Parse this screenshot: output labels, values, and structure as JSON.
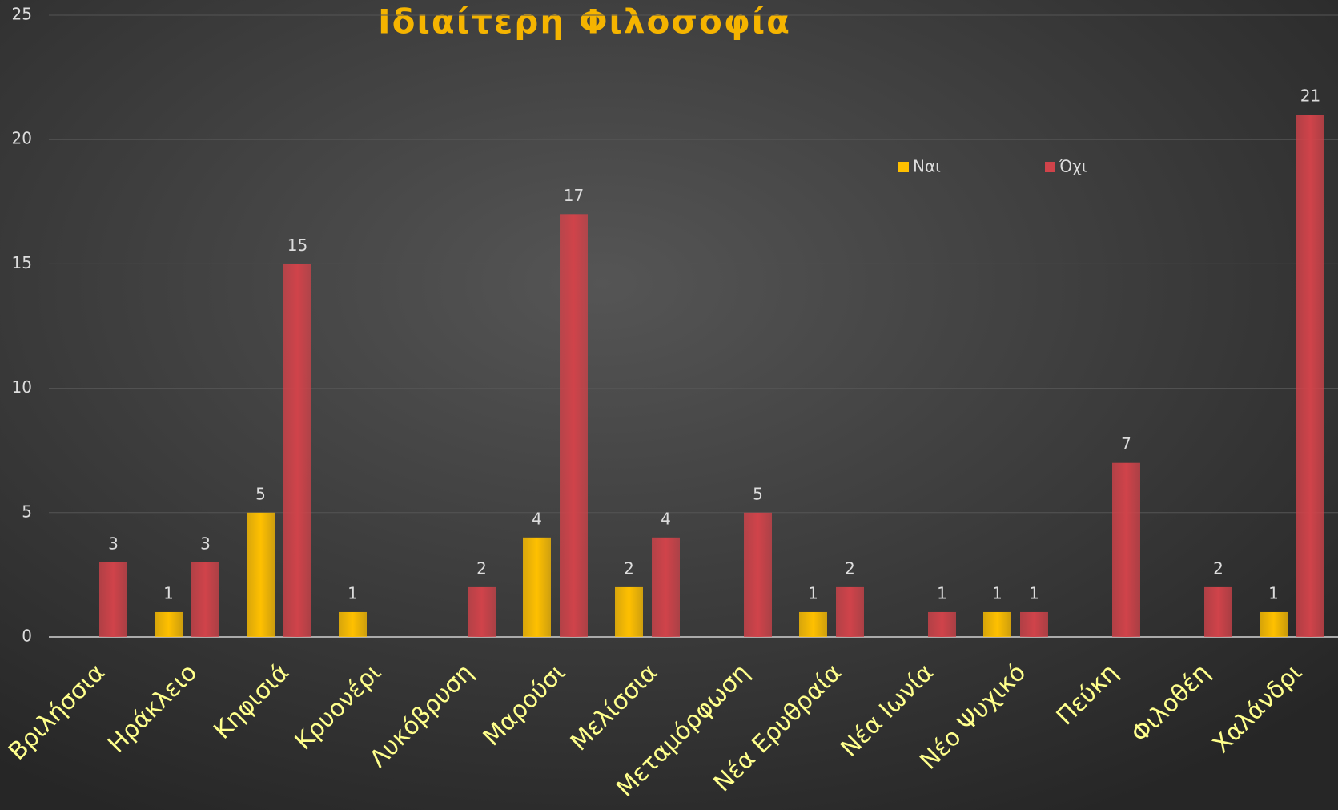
{
  "chart_data": {
    "type": "bar",
    "title": "Ιδιαίτερη Φιλοσοφία",
    "categories": [
      "Βριλήσσια",
      "Ηράκλειο",
      "Κηφισιά",
      "Κρυονέρι",
      "Λυκόβρυση",
      "Μαρούσι",
      "Μελίσσια",
      "Μεταμόρφωση",
      "Νέα Ερυθραία",
      "Νέα Ιωνία",
      "Νέο Ψυχικό",
      "Πεύκη",
      "Φιλοθέη",
      "Χαλάνδρι"
    ],
    "series": [
      {
        "name": "Ναι",
        "color": "#ffc000",
        "values": [
          null,
          1,
          5,
          1,
          null,
          4,
          2,
          null,
          1,
          null,
          1,
          null,
          null,
          1
        ]
      },
      {
        "name": "Όχι",
        "color": "#d0434a",
        "values": [
          3,
          3,
          15,
          null,
          2,
          17,
          4,
          5,
          2,
          1,
          1,
          7,
          2,
          21
        ]
      }
    ],
    "ylim": [
      0,
      25
    ],
    "yticks": [
      0,
      5,
      10,
      15,
      20,
      25
    ],
    "grid": true,
    "legend": "top-right"
  }
}
